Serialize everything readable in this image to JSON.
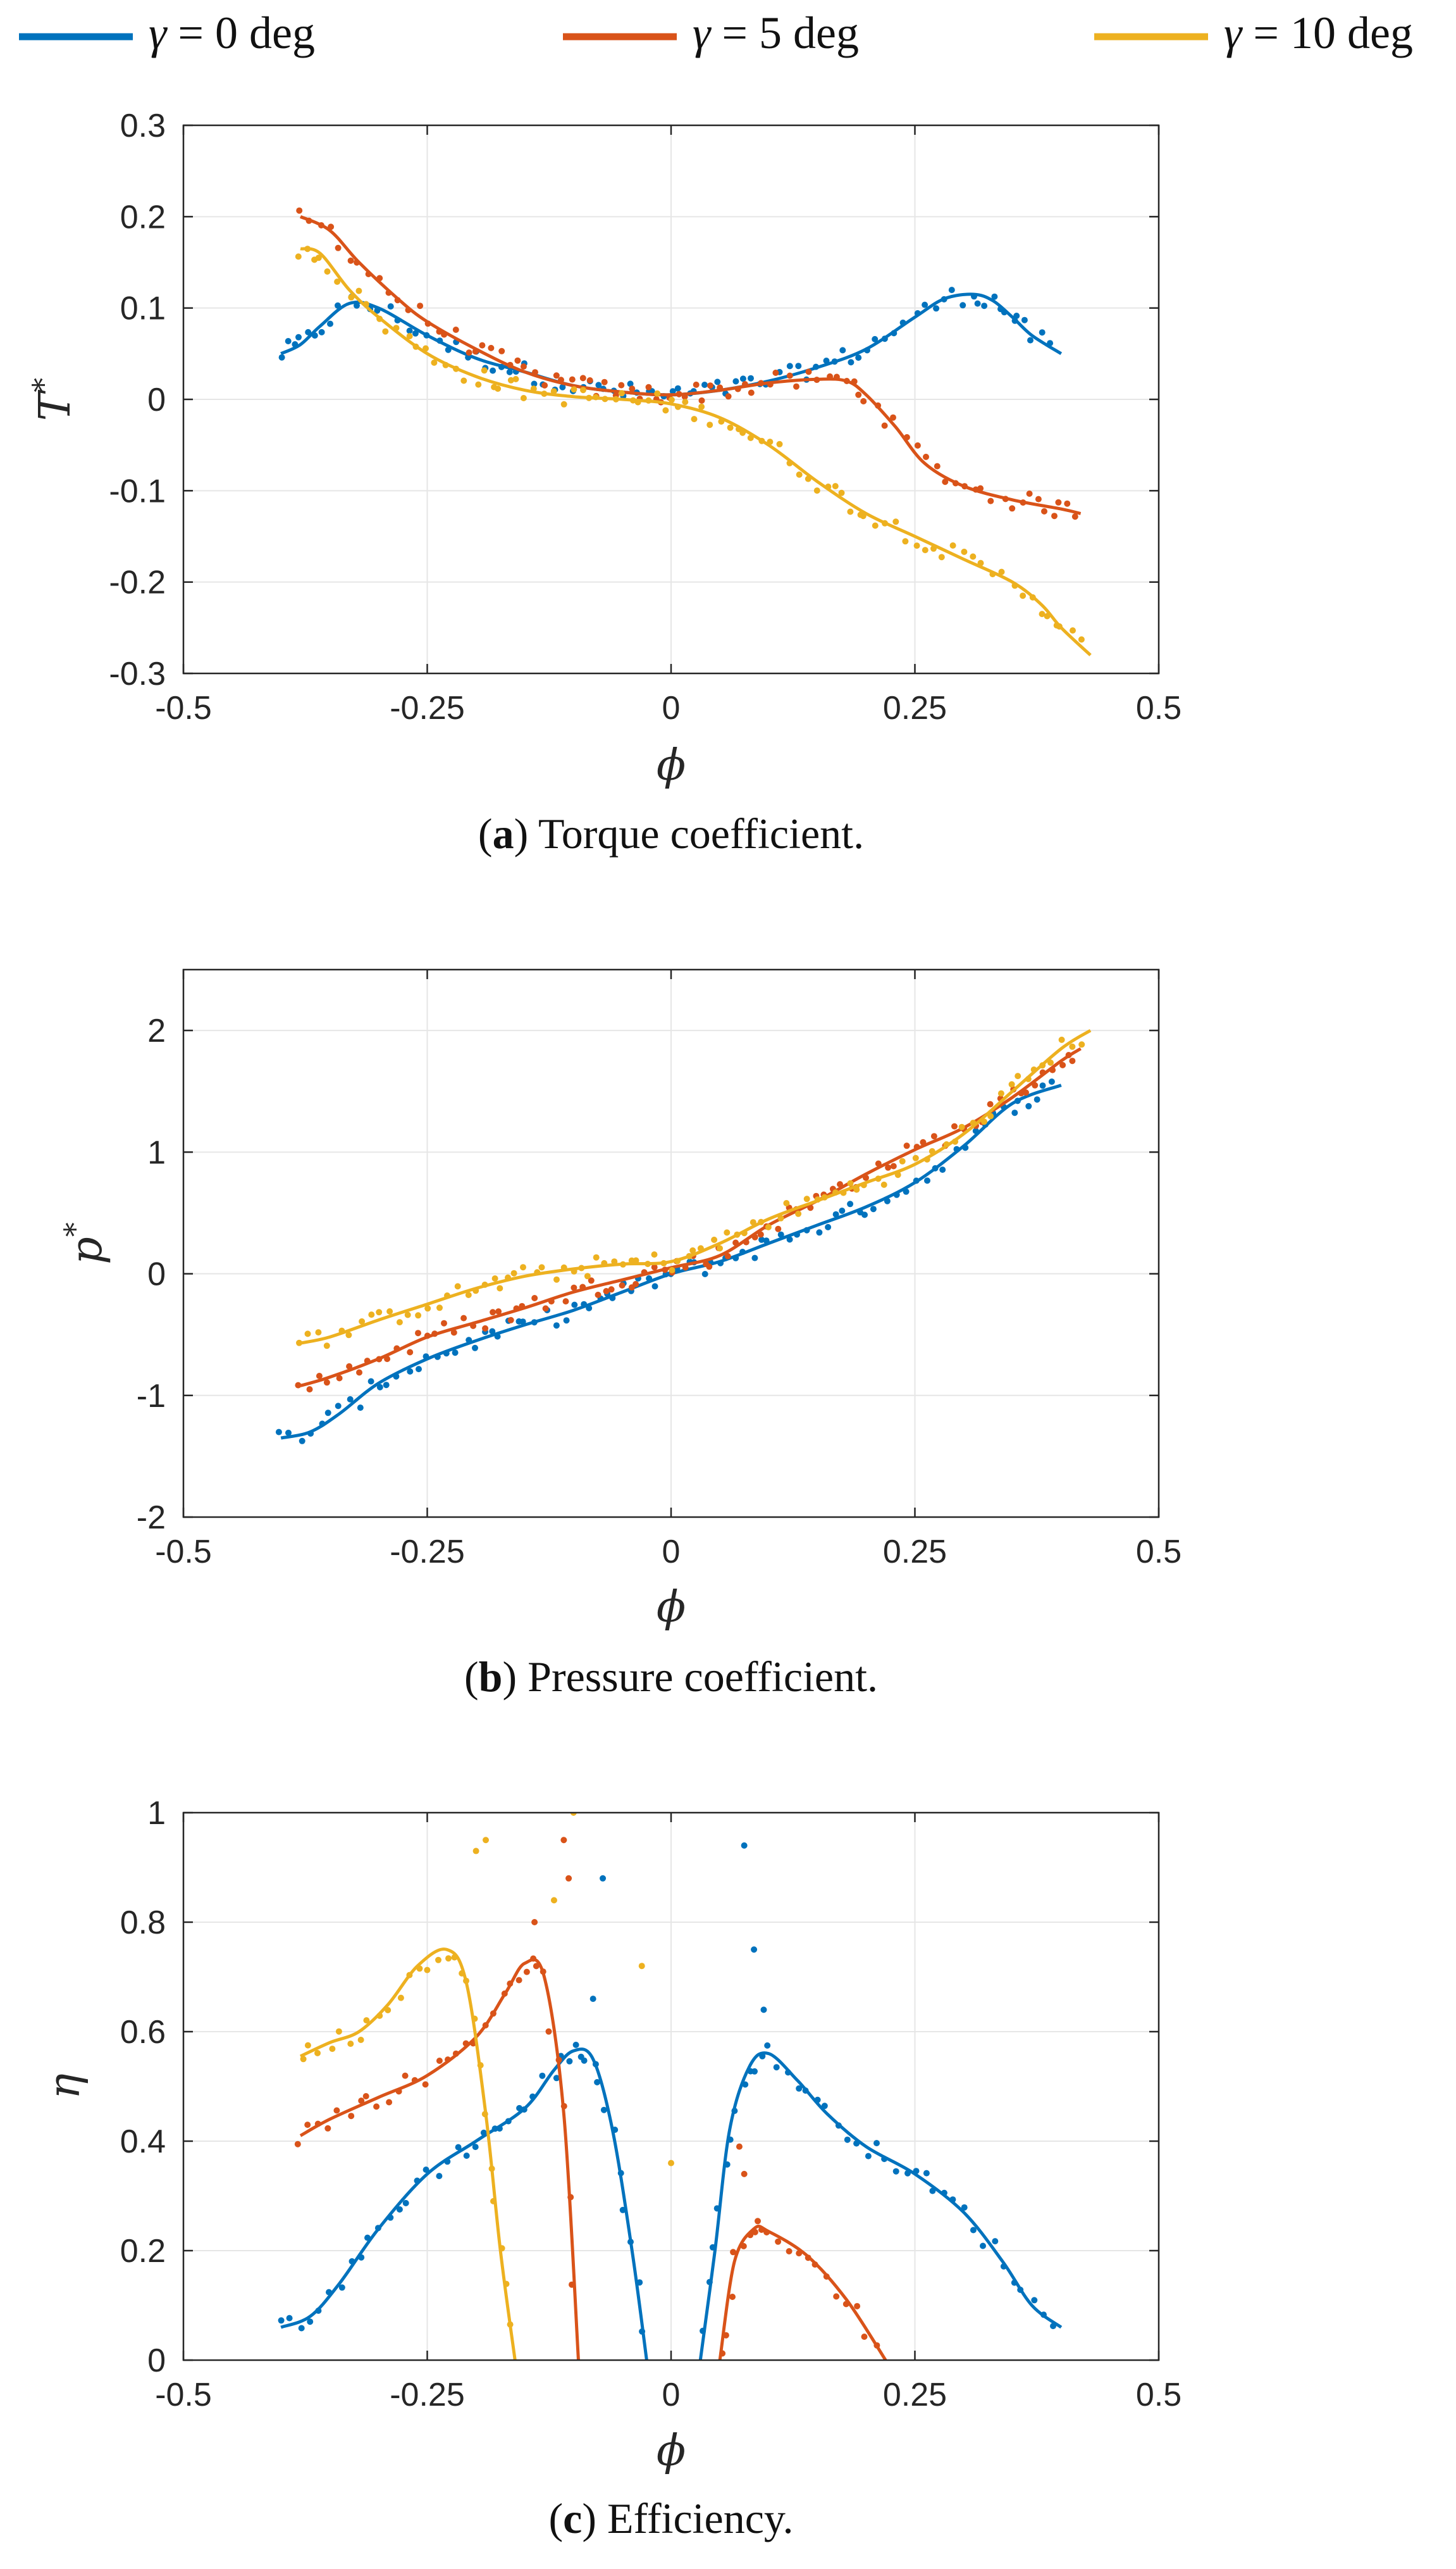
{
  "legend": [
    {
      "name": "γ = 0 deg",
      "symbol": "γ",
      "equals": "= 0 deg",
      "color": "#0072BD"
    },
    {
      "name": "γ = 5 deg",
      "symbol": "γ",
      "equals": "= 5 deg",
      "color": "#D95319"
    },
    {
      "name": "γ = 10 deg",
      "symbol": "γ",
      "equals": "= 10 deg",
      "color": "#EDB120"
    }
  ],
  "chart_data": [
    {
      "id": "a",
      "type": "scatter",
      "title": "",
      "caption_letter": "a",
      "caption_text": "Torque coefficient.",
      "xlabel": "ϕ",
      "ylabel": "T*",
      "ylabel_main": "T",
      "ylabel_sup": "*",
      "xlim": [
        -0.5,
        0.5
      ],
      "ylim": [
        -0.3,
        0.3
      ],
      "xticks": [
        -0.5,
        -0.25,
        0,
        0.25,
        0.5
      ],
      "xtick_labels": [
        "-0.5",
        "-0.25",
        "0",
        "0.25",
        "0.5"
      ],
      "yticks": [
        -0.3,
        -0.2,
        -0.1,
        0,
        0.1,
        0.2,
        0.3
      ],
      "ytick_labels": [
        "-0.3",
        "-0.2",
        "-0.1",
        "0",
        "0.1",
        "0.2",
        "0.3"
      ],
      "grid": true,
      "series": [
        {
          "name": "γ = 0 deg",
          "color": "#0072BD",
          "x": [
            -0.4,
            -0.38,
            -0.36,
            -0.33,
            -0.3,
            -0.25,
            -0.2,
            -0.15,
            -0.1,
            -0.05,
            0,
            0.05,
            0.1,
            0.15,
            0.2,
            0.25,
            0.28,
            0.31,
            0.33,
            0.35,
            0.37,
            0.4
          ],
          "y": [
            0.05,
            0.06,
            0.08,
            0.105,
            0.1,
            0.07,
            0.045,
            0.03,
            0.015,
            0.008,
            0.005,
            0.01,
            0.02,
            0.035,
            0.055,
            0.09,
            0.11,
            0.115,
            0.108,
            0.09,
            0.07,
            0.05
          ]
        },
        {
          "name": "γ = 5 deg",
          "color": "#D95319",
          "x": [
            -0.38,
            -0.35,
            -0.32,
            -0.28,
            -0.25,
            -0.2,
            -0.15,
            -0.1,
            -0.05,
            0,
            0.05,
            0.1,
            0.15,
            0.18,
            0.2,
            0.23,
            0.26,
            0.3,
            0.35,
            0.4,
            0.42
          ],
          "y": [
            0.2,
            0.185,
            0.15,
            0.11,
            0.085,
            0.055,
            0.03,
            0.015,
            0.008,
            0.005,
            0.01,
            0.018,
            0.022,
            0.02,
            0.005,
            -0.03,
            -0.07,
            -0.095,
            -0.11,
            -0.12,
            -0.125
          ]
        },
        {
          "name": "γ = 10 deg",
          "color": "#EDB120",
          "x": [
            -0.38,
            -0.36,
            -0.33,
            -0.3,
            -0.25,
            -0.2,
            -0.15,
            -0.1,
            -0.05,
            0,
            0.05,
            0.1,
            0.15,
            0.2,
            0.25,
            0.3,
            0.35,
            0.38,
            0.4,
            0.43
          ],
          "y": [
            0.165,
            0.16,
            0.12,
            0.09,
            0.05,
            0.025,
            0.01,
            0.003,
            0.0,
            -0.005,
            -0.02,
            -0.05,
            -0.09,
            -0.125,
            -0.15,
            -0.175,
            -0.2,
            -0.225,
            -0.25,
            -0.28
          ]
        }
      ]
    },
    {
      "id": "b",
      "type": "scatter",
      "title": "",
      "caption_letter": "b",
      "caption_text": "Pressure coefficient.",
      "xlabel": "ϕ",
      "ylabel": "p*",
      "ylabel_main": "p",
      "ylabel_sup": "*",
      "xlim": [
        -0.5,
        0.5
      ],
      "ylim": [
        -2,
        2.5
      ],
      "xticks": [
        -0.5,
        -0.25,
        0,
        0.25,
        0.5
      ],
      "xtick_labels": [
        "-0.5",
        "-0.25",
        "0",
        "0.25",
        "0.5"
      ],
      "yticks": [
        -2,
        -1,
        0,
        1,
        2
      ],
      "ytick_labels": [
        "-2",
        "-1",
        "0",
        "1",
        "2"
      ],
      "grid": true,
      "series": [
        {
          "name": "γ = 0 deg",
          "color": "#0072BD",
          "x": [
            -0.4,
            -0.37,
            -0.34,
            -0.3,
            -0.25,
            -0.2,
            -0.15,
            -0.1,
            -0.05,
            0,
            0.05,
            0.1,
            0.15,
            0.2,
            0.25,
            0.3,
            0.35,
            0.4
          ],
          "y": [
            -1.35,
            -1.3,
            -1.15,
            -0.9,
            -0.7,
            -0.55,
            -0.42,
            -0.3,
            -0.15,
            0.0,
            0.1,
            0.25,
            0.4,
            0.55,
            0.75,
            1.05,
            1.4,
            1.55
          ]
        },
        {
          "name": "γ = 5 deg",
          "color": "#D95319",
          "x": [
            -0.38,
            -0.35,
            -0.3,
            -0.25,
            -0.2,
            -0.15,
            -0.1,
            -0.05,
            0,
            0.05,
            0.1,
            0.15,
            0.2,
            0.25,
            0.3,
            0.35,
            0.4,
            0.42
          ],
          "y": [
            -0.92,
            -0.85,
            -0.7,
            -0.52,
            -0.4,
            -0.28,
            -0.15,
            -0.05,
            0.05,
            0.15,
            0.4,
            0.6,
            0.82,
            1.02,
            1.2,
            1.45,
            1.75,
            1.85
          ]
        },
        {
          "name": "γ = 10 deg",
          "color": "#EDB120",
          "x": [
            -0.38,
            -0.35,
            -0.3,
            -0.25,
            -0.2,
            -0.15,
            -0.1,
            -0.05,
            0,
            0.05,
            0.1,
            0.15,
            0.2,
            0.25,
            0.3,
            0.35,
            0.4,
            0.43
          ],
          "y": [
            -0.57,
            -0.52,
            -0.38,
            -0.25,
            -0.12,
            -0.02,
            0.04,
            0.08,
            0.1,
            0.25,
            0.45,
            0.6,
            0.75,
            0.9,
            1.15,
            1.5,
            1.85,
            2.0
          ]
        }
      ]
    },
    {
      "id": "c",
      "type": "scatter",
      "title": "",
      "caption_letter": "c",
      "caption_text": "Efficiency.",
      "xlabel": "ϕ",
      "ylabel": "η",
      "ylabel_main": "η",
      "ylabel_sup": "",
      "xlim": [
        -0.5,
        0.5
      ],
      "ylim": [
        0,
        1
      ],
      "xticks": [
        -0.5,
        -0.25,
        0,
        0.25,
        0.5
      ],
      "xtick_labels": [
        "-0.5",
        "-0.25",
        "0",
        "0.25",
        "0.5"
      ],
      "yticks": [
        0,
        0.2,
        0.4,
        0.6,
        0.8,
        1
      ],
      "ytick_labels": [
        "0",
        "0.2",
        "0.4",
        "0.6",
        "0.8",
        "1"
      ],
      "grid": true,
      "series": [
        {
          "name": "γ = 0 deg",
          "color": "#0072BD",
          "x": [
            -0.4,
            -0.37,
            -0.34,
            -0.3,
            -0.25,
            -0.2,
            -0.15,
            -0.12,
            -0.1,
            -0.08,
            -0.06,
            -0.04,
            -0.025,
            0.03,
            0.045,
            0.06,
            0.08,
            0.1,
            0.13,
            0.16,
            0.2,
            0.25,
            0.3,
            0.34,
            0.37,
            0.4
          ],
          "y": [
            0.06,
            0.08,
            0.14,
            0.24,
            0.34,
            0.4,
            0.46,
            0.53,
            0.565,
            0.55,
            0.42,
            0.2,
            0.0,
            0.0,
            0.2,
            0.42,
            0.535,
            0.56,
            0.51,
            0.45,
            0.39,
            0.34,
            0.27,
            0.18,
            0.1,
            0.06
          ]
        },
        {
          "name": "γ = 5 deg",
          "color": "#D95319",
          "x": [
            -0.38,
            -0.35,
            -0.3,
            -0.25,
            -0.2,
            -0.17,
            -0.15,
            -0.13,
            -0.11,
            -0.095,
            0.05,
            0.065,
            0.085,
            0.1,
            0.14,
            0.18,
            0.22
          ],
          "y": [
            0.41,
            0.44,
            0.48,
            0.52,
            0.59,
            0.67,
            0.725,
            0.7,
            0.45,
            0.0,
            0.0,
            0.18,
            0.24,
            0.235,
            0.19,
            0.11,
            0.0
          ]
        },
        {
          "name": "γ = 10 deg",
          "color": "#EDB120",
          "x": [
            -0.38,
            -0.35,
            -0.32,
            -0.29,
            -0.26,
            -0.23,
            -0.21,
            -0.19,
            -0.175,
            -0.16
          ],
          "y": [
            0.555,
            0.58,
            0.6,
            0.65,
            0.72,
            0.75,
            0.69,
            0.45,
            0.2,
            0.0
          ]
        }
      ],
      "scatter_outliers": [
        {
          "series": "γ = 0 deg",
          "x": [
            -0.08,
            -0.07,
            0.075,
            0.085,
            0.095
          ],
          "y": [
            0.66,
            0.88,
            0.94,
            0.75,
            0.64
          ]
        },
        {
          "series": "γ = 5 deg",
          "x": [
            -0.14,
            -0.11,
            -0.105,
            0.07,
            0.075
          ],
          "y": [
            0.8,
            0.95,
            0.88,
            0.39,
            0.34
          ]
        },
        {
          "series": "γ = 10 deg",
          "x": [
            -0.2,
            -0.19,
            -0.12,
            -0.1,
            -0.03,
            0
          ],
          "y": [
            0.93,
            0.95,
            0.84,
            1.0,
            0.72,
            0.36
          ]
        }
      ]
    }
  ]
}
